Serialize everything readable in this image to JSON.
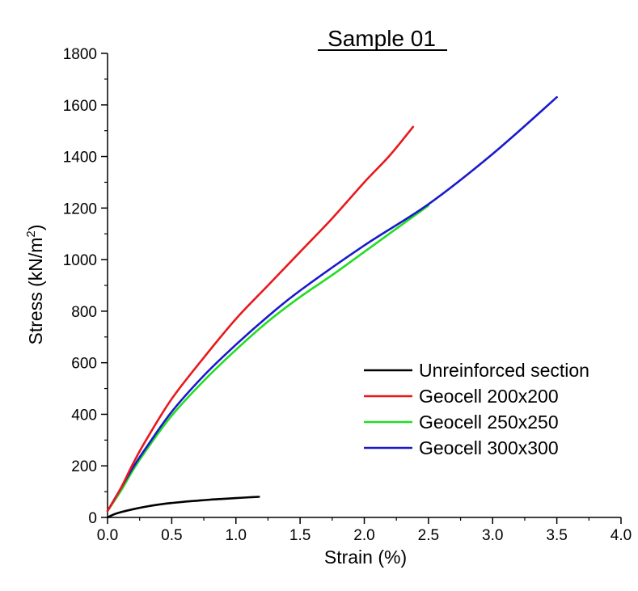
{
  "chart_data": {
    "type": "line",
    "title": "Sample 01",
    "xlabel": "Strain (%)",
    "ylabel_main": "Stress (kN/m",
    "ylabel_sup": "2",
    "ylabel_close": ")",
    "xlim": [
      0,
      4.0
    ],
    "ylim": [
      0,
      1800
    ],
    "xticks": [
      "0.0",
      "0.5",
      "1.0",
      "1.5",
      "2.0",
      "2.5",
      "3.0",
      "3.5",
      "4.0"
    ],
    "yticks": [
      "0",
      "200",
      "400",
      "600",
      "800",
      "1000",
      "1200",
      "1400",
      "1600",
      "1800"
    ],
    "grid": false,
    "legend_position": "lower-right",
    "series": [
      {
        "name": "Unreinforced section",
        "color": "#000000",
        "x": [
          0,
          0.05,
          0.1,
          0.2,
          0.3,
          0.4,
          0.5,
          0.6,
          0.7,
          0.8,
          0.9,
          1.0,
          1.1,
          1.18
        ],
        "y": [
          0,
          12,
          20,
          32,
          42,
          50,
          56,
          61,
          65,
          69,
          72,
          75,
          78,
          80
        ]
      },
      {
        "name": "Geocell 200x200",
        "color": "#e8191c",
        "x": [
          0,
          0.1,
          0.2,
          0.3,
          0.5,
          0.75,
          1.0,
          1.25,
          1.5,
          1.75,
          2.0,
          2.2,
          2.38
        ],
        "y": [
          25,
          110,
          210,
          300,
          460,
          620,
          770,
          900,
          1030,
          1160,
          1300,
          1405,
          1515
        ]
      },
      {
        "name": "Geocell 250x250",
        "color": "#22dd22",
        "x": [
          0,
          0.1,
          0.2,
          0.3,
          0.5,
          0.75,
          1.0,
          1.25,
          1.5,
          1.75,
          2.0,
          2.25,
          2.5
        ],
        "y": [
          25,
          100,
          185,
          260,
          395,
          530,
          650,
          760,
          855,
          940,
          1030,
          1120,
          1210
        ]
      },
      {
        "name": "Geocell 300x300",
        "color": "#1a1acc",
        "x": [
          0,
          0.1,
          0.2,
          0.3,
          0.5,
          0.75,
          1.0,
          1.25,
          1.5,
          2.0,
          2.5,
          3.0,
          3.5
        ],
        "y": [
          25,
          110,
          195,
          270,
          410,
          550,
          670,
          780,
          880,
          1055,
          1215,
          1410,
          1630
        ]
      }
    ]
  }
}
